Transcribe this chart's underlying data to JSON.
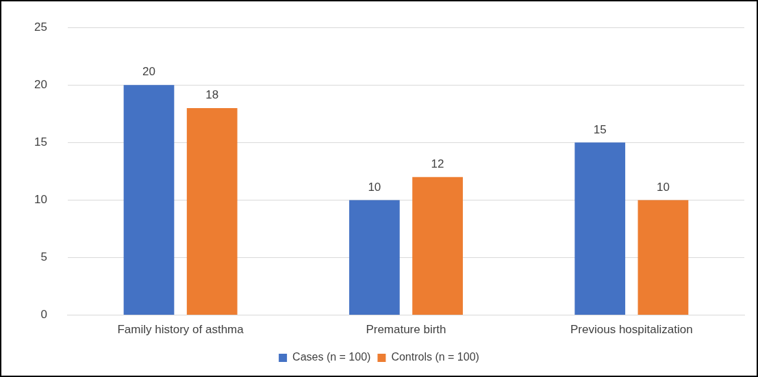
{
  "chart_data": {
    "type": "bar",
    "categories": [
      "Family history of asthma",
      "Premature birth",
      "Previous hospitalization"
    ],
    "series": [
      {
        "name": "Cases (n = 100)",
        "color": "#4472c4",
        "values": [
          20,
          10,
          15
        ]
      },
      {
        "name": "Controls (n = 100)",
        "color": "#ed7d31",
        "values": [
          18,
          12,
          10
        ]
      }
    ],
    "ylim": [
      0,
      25
    ],
    "yticks": [
      0,
      5,
      10,
      15,
      20,
      25
    ],
    "grid": "y",
    "legend": "bottom",
    "data_labels": true
  }
}
